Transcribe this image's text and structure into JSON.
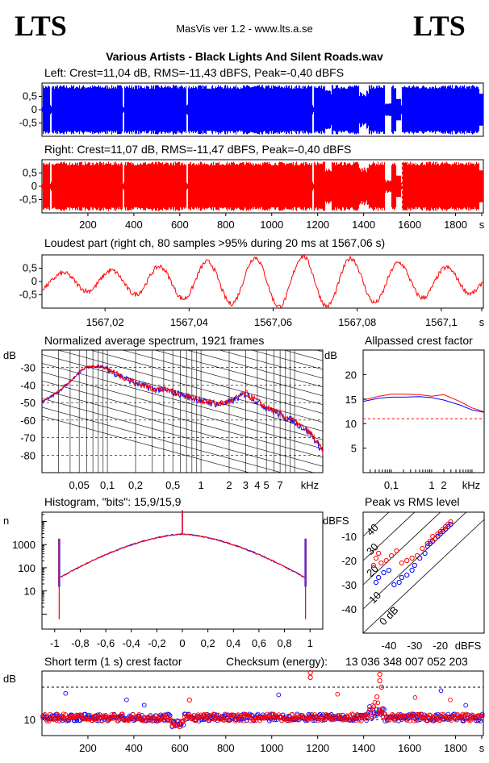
{
  "header": {
    "logo_left": "LTS",
    "logo_right": "LTS",
    "app_title": "MasVis ver 1.2 - www.lts.a.se",
    "file_name": "Various Artists - Black Lights And Silent Roads.wav"
  },
  "colors": {
    "left": "#0000ff",
    "right": "#ff0000",
    "dashed": "#000000"
  },
  "chart_data": [
    {
      "type": "area",
      "id": "waveform-left",
      "title": "Left: Crest=11,04 dB, RMS=-11,43 dBFS, Peak=-0,40 dBFS",
      "ylim": [
        -1,
        1
      ],
      "yticks": [
        "0,5",
        "0",
        "-0,5"
      ],
      "xlim": [
        0,
        1921
      ],
      "series": [
        {
          "color": "#0000ff"
        }
      ],
      "gaps_s": [
        37,
        352,
        630,
        1178,
        1560
      ]
    },
    {
      "type": "area",
      "id": "waveform-right",
      "title": "Right: Crest=11,07 dB, RMS=-11,47 dBFS, Peak=-0,40 dBFS",
      "ylim": [
        -1,
        1
      ],
      "yticks": [
        "0,5",
        "0",
        "-0,5"
      ],
      "xlim": [
        0,
        1921
      ],
      "xticks": [
        "200",
        "400",
        "600",
        "800",
        "1000",
        "1200",
        "1400",
        "1600",
        "1800",
        "s"
      ],
      "marker_s": 1567.06,
      "series": [
        {
          "color": "#ff0000"
        }
      ]
    },
    {
      "type": "line",
      "id": "loudest-part",
      "title": "Loudest part (right ch, 80 samples >95% during 20 ms at 1567,06 s)",
      "ylim": [
        -1,
        1
      ],
      "yticks": [
        "0,5",
        "0",
        "-0,5"
      ],
      "xlim": [
        1567.005,
        1567.11
      ],
      "xticks": [
        "1567,02",
        "1567,04",
        "1567,06",
        "1567,08",
        "1567,1",
        "s"
      ],
      "series": [
        {
          "color": "#ff0000"
        }
      ]
    },
    {
      "type": "line",
      "id": "spectrum",
      "title": "Normalized average spectrum, 1921 frames",
      "ylabel": "dB",
      "yticks": [
        "-30",
        "-40",
        "-50",
        "-60",
        "-70",
        "-80"
      ],
      "xticks": [
        "0,05",
        "0,1",
        "0,2",
        "0,5",
        "1",
        "2",
        "3",
        "4",
        "5",
        "7",
        "kHz"
      ],
      "ylim": [
        -90,
        -20
      ],
      "series": [
        {
          "color": "#0000ff",
          "x_khz": [
            0.02,
            0.03,
            0.04,
            0.05,
            0.06,
            0.08,
            0.1,
            0.2,
            0.3,
            0.5,
            1,
            1.5,
            2,
            3,
            5,
            7,
            10,
            15,
            20
          ],
          "y_db": [
            -50,
            -44,
            -38,
            -33,
            -30,
            -29,
            -31,
            -39,
            -42,
            -44,
            -49,
            -51,
            -50,
            -45,
            -53,
            -57,
            -61,
            -68,
            -78
          ]
        },
        {
          "color": "#ff0000",
          "x_khz": [
            0.02,
            0.03,
            0.04,
            0.05,
            0.06,
            0.08,
            0.1,
            0.2,
            0.3,
            0.5,
            1,
            1.5,
            2,
            3,
            5,
            7,
            10,
            15,
            20
          ],
          "y_db": [
            -50,
            -44,
            -38,
            -33,
            -30,
            -29,
            -31,
            -39,
            -42,
            -44,
            -49,
            -51,
            -50,
            -45,
            -53,
            -57,
            -61,
            -68,
            -78
          ]
        }
      ]
    },
    {
      "type": "line",
      "id": "allpassed-crest",
      "title": "Allpassed crest factor",
      "ylabel": "dB",
      "yticks": [
        "20",
        "15",
        "10",
        "5"
      ],
      "ylim": [
        0,
        25
      ],
      "xticks": [
        "0,1",
        "1",
        "2",
        "kHz"
      ],
      "reference_db": 11,
      "series": [
        {
          "color": "#0000ff",
          "x_khz": [
            0.02,
            0.05,
            0.1,
            0.2,
            0.5,
            1,
            2,
            5,
            10,
            20
          ],
          "y_db": [
            14.5,
            15.2,
            15.4,
            15.4,
            15.5,
            15.3,
            14.8,
            13.8,
            12.8,
            12.3
          ]
        },
        {
          "color": "#ff0000",
          "x_khz": [
            0.02,
            0.05,
            0.1,
            0.2,
            0.5,
            1,
            2,
            5,
            10,
            20
          ],
          "y_db": [
            14.8,
            15.6,
            16.0,
            16.0,
            15.9,
            15.6,
            15.9,
            14.5,
            13.2,
            12.4
          ]
        }
      ]
    },
    {
      "type": "line",
      "id": "histogram",
      "title": "Histogram, \"bits\": 15,9/15,9",
      "ylabel": "n",
      "yticks": [
        "1000",
        "100",
        "10"
      ],
      "xlim": [
        -1.1,
        1.1
      ],
      "xticks": [
        "-1",
        "-0,8",
        "-0,6",
        "-0,4",
        "-0,2",
        "0",
        "0,2",
        "0,4",
        "0,6",
        "0,8",
        "1"
      ],
      "series": [
        {
          "color": "#0000ff"
        },
        {
          "color": "#ff0000"
        }
      ]
    },
    {
      "type": "scatter",
      "id": "peak-vs-rms",
      "title": "Peak vs RMS level",
      "ylabel": "dBFS",
      "xlabel": "dBFS",
      "yticks": [
        "-10",
        "-20",
        "-30",
        "-40"
      ],
      "xticks": [
        "-40",
        "-30",
        "-20"
      ],
      "xlim": [
        -50,
        -3
      ],
      "ylim": [
        -50,
        0
      ],
      "crest_lines": [
        "0 dB",
        "10",
        "20",
        "30",
        "40"
      ],
      "series": [
        {
          "color": "#0000ff",
          "points": [
            [
              -45,
              -29
            ],
            [
              -44,
              -27
            ],
            [
              -42,
              -25
            ],
            [
              -40,
              -24
            ],
            [
              -38,
              -30
            ],
            [
              -36,
              -29
            ],
            [
              -35,
              -27
            ],
            [
              -33,
              -26
            ],
            [
              -31,
              -24
            ],
            [
              -30,
              -22
            ],
            [
              -28,
              -19
            ],
            [
              -26,
              -17
            ],
            [
              -25,
              -14
            ],
            [
              -24,
              -13
            ],
            [
              -23,
              -12
            ],
            [
              -22,
              -11
            ],
            [
              -21,
              -10
            ],
            [
              -20,
              -9
            ],
            [
              -19,
              -8
            ],
            [
              -18,
              -7
            ],
            [
              -17,
              -6
            ],
            [
              -16,
              -5
            ]
          ]
        },
        {
          "color": "#ff0000",
          "points": [
            [
              -46,
              -22
            ],
            [
              -45,
              -19
            ],
            [
              -44,
              -17
            ],
            [
              -43,
              -21
            ],
            [
              -41,
              -20
            ],
            [
              -39,
              -18
            ],
            [
              -37,
              -16
            ],
            [
              -35,
              -21
            ],
            [
              -33,
              -20
            ],
            [
              -31,
              -19
            ],
            [
              -29,
              -18
            ],
            [
              -27,
              -15
            ],
            [
              -25,
              -13
            ],
            [
              -24,
              -12
            ],
            [
              -23,
              -10
            ],
            [
              -22,
              -11
            ],
            [
              -21,
              -9
            ],
            [
              -20,
              -8
            ],
            [
              -19,
              -7
            ],
            [
              -18,
              -6
            ],
            [
              -17,
              -5
            ],
            [
              -16,
              -4
            ]
          ]
        }
      ]
    },
    {
      "type": "scatter",
      "id": "short-term-crest",
      "title": "Short term (1 s) crest factor",
      "ylabel": "dB",
      "yticks": [
        "10"
      ],
      "xlim": [
        0,
        1921
      ],
      "xticks": [
        "200",
        "400",
        "600",
        "800",
        "1000",
        "1200",
        "1400",
        "1600",
        "1800",
        "s"
      ],
      "checksum_label": "Checksum (energy):",
      "checksum_value": "13 036 348 007 052 203",
      "series": [
        {
          "color": "#0000ff"
        },
        {
          "color": "#ff0000"
        }
      ]
    }
  ]
}
